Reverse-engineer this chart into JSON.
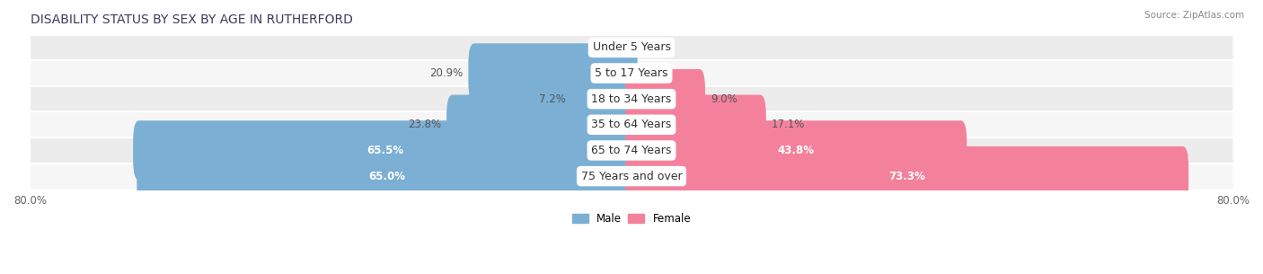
{
  "title": "DISABILITY STATUS BY SEX BY AGE IN RUTHERFORD",
  "source": "Source: ZipAtlas.com",
  "categories": [
    "Under 5 Years",
    "5 to 17 Years",
    "18 to 34 Years",
    "35 to 64 Years",
    "65 to 74 Years",
    "75 Years and over"
  ],
  "male_values": [
    0.0,
    20.9,
    7.2,
    23.8,
    65.5,
    65.0
  ],
  "female_values": [
    0.0,
    0.0,
    9.0,
    17.1,
    43.8,
    73.3
  ],
  "male_color": "#7bafd4",
  "female_color": "#f4819b",
  "row_colors": [
    "#ececec",
    "#f6f6f6"
  ],
  "xlim_left": -80.0,
  "xlim_right": 80.0,
  "title_color": "#3a3a5c",
  "title_fontsize": 10,
  "label_fontsize": 8.5,
  "tick_fontsize": 8.5,
  "source_color": "#888888",
  "cat_label_color": "#333333",
  "value_color_dark": "#555555",
  "value_color_white": "#ffffff"
}
